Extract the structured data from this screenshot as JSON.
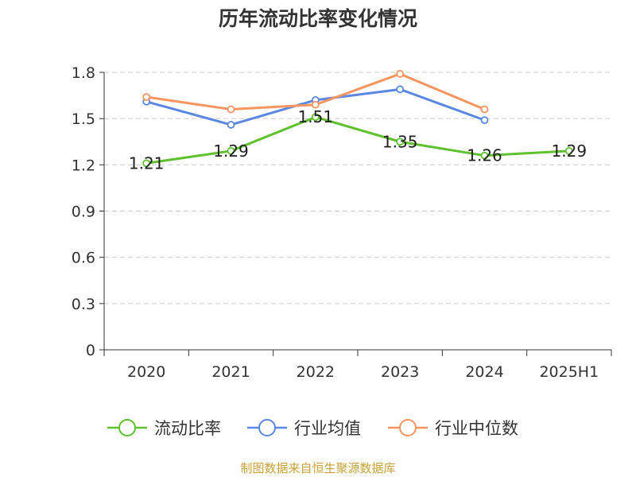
{
  "title": "历年流动比率变化情况",
  "footer": "制图数据来自恒生聚源数据库",
  "colors": {
    "current_ratio": "#5fc12f",
    "industry_avg": "#5b87e0",
    "industry_median": "#f5955f",
    "grid": "#cccccc",
    "axis": "#333333"
  },
  "chart_data": {
    "type": "line",
    "categories": [
      "2020",
      "2021",
      "2022",
      "2023",
      "2024",
      "2025H1"
    ],
    "ylim": [
      0,
      1.8
    ],
    "yticks": [
      "0",
      "0.3",
      "0.6",
      "0.9",
      "1.2",
      "1.5",
      "1.8"
    ],
    "grid": "horizontal dashed",
    "legend_position": "bottom",
    "series": [
      {
        "name": "流动比率",
        "values": [
          1.21,
          1.29,
          1.51,
          1.35,
          1.26,
          1.29
        ],
        "labels": [
          "1.21",
          "1.29",
          "1.51",
          "1.35",
          "1.26",
          "1.29"
        ]
      },
      {
        "name": "行业均值",
        "values": [
          1.61,
          1.46,
          1.62,
          1.69,
          1.49,
          null
        ]
      },
      {
        "name": "行业中位数",
        "values": [
          1.64,
          1.56,
          1.59,
          1.79,
          1.56,
          null
        ]
      }
    ]
  }
}
